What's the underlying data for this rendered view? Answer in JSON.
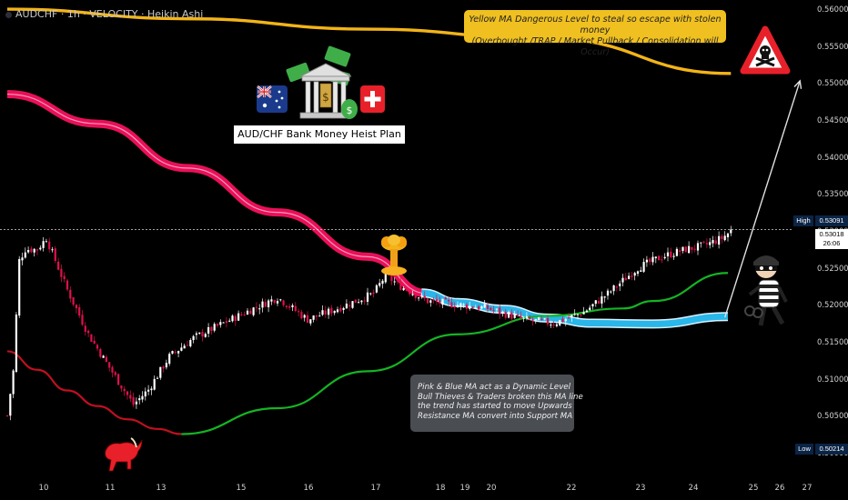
{
  "header": {
    "symbol_label": "AUDCHF · 1h · VELOCITY · Heikin Ashi"
  },
  "annotations": {
    "yellow_note": {
      "line1": "Yellow MA Dangerous Level to steal so escape with stolen money",
      "line2": "(Overbought /TRAP / Market Pullback / Consolidation will Occur)"
    },
    "plan_title": "AUD/CHF Bank Money Heist Plan",
    "grey_note": {
      "lines": [
        "Pink & Blue MA act as a Dynamic Level",
        "Bull Thieves & Traders broken this MA line",
        "the trend has started to move Upwards",
        "Resistance MA convert into Support MA"
      ]
    }
  },
  "price_tags": {
    "high_label": "High",
    "high_value": "0.53091",
    "current_value": "0.53018",
    "countdown": "26:06",
    "low_label": "Low",
    "low_value": "0.50214"
  },
  "colors": {
    "bull": "#ffffff",
    "bear": "#e0104a",
    "pink_ma": "#e8105a",
    "blue_ma": "#29b6e8",
    "green_ma": "#14b424",
    "yellow_ma": "#f2b418",
    "red_ma": "#c01020",
    "arrow": "#e0e0e0"
  },
  "icons": [
    "australia-flag-icon",
    "bank-money-icon",
    "swiss-flag-icon",
    "danger-skull-sign-icon",
    "explosion-icon",
    "bull-icon",
    "thief-icon"
  ],
  "chart_data": {
    "type": "candlestick",
    "style": "Heikin Ashi",
    "timeframe": "1h",
    "ylim": [
      0.4985,
      0.5605
    ],
    "y_ticks": [
      "0.56000",
      "0.55500",
      "0.55000",
      "0.54500",
      "0.54000",
      "0.53500",
      "0.53000",
      "0.52500",
      "0.52000",
      "0.51500",
      "0.51000",
      "0.50500",
      "0.50000"
    ],
    "x_ticks": [
      "10",
      "11",
      "13",
      "15",
      "16",
      "17",
      "18",
      "19",
      "20",
      "22",
      "23",
      "24",
      "25",
      "26",
      "27"
    ],
    "anchors": [
      [
        0,
        0.505
      ],
      [
        2,
        0.511
      ],
      [
        4,
        0.526
      ],
      [
        6,
        0.5275
      ],
      [
        10,
        0.5275
      ],
      [
        13,
        0.529
      ],
      [
        20,
        0.522
      ],
      [
        27,
        0.516
      ],
      [
        34,
        0.5115
      ],
      [
        42,
        0.5065
      ],
      [
        47,
        0.5085
      ],
      [
        54,
        0.513
      ],
      [
        62,
        0.5155
      ],
      [
        72,
        0.5175
      ],
      [
        82,
        0.5195
      ],
      [
        90,
        0.521
      ],
      [
        100,
        0.518
      ],
      [
        110,
        0.5195
      ],
      [
        122,
        0.5215
      ],
      [
        126,
        0.524
      ],
      [
        131,
        0.5225
      ],
      [
        140,
        0.5205
      ],
      [
        150,
        0.52
      ],
      [
        160,
        0.5195
      ],
      [
        172,
        0.518
      ],
      [
        182,
        0.5175
      ],
      [
        192,
        0.519
      ],
      [
        200,
        0.5215
      ],
      [
        210,
        0.525
      ],
      [
        218,
        0.5265
      ],
      [
        226,
        0.5275
      ],
      [
        232,
        0.528
      ],
      [
        238,
        0.529
      ],
      [
        241,
        0.53
      ]
    ],
    "candle_count": 242,
    "last_close": 0.53018,
    "high": 0.53091,
    "low": 0.50214,
    "moving_averages": [
      {
        "name": "Pink MA",
        "color": "#e8105a",
        "points": [
          [
            0,
            0.5485
          ],
          [
            30,
            0.5445
          ],
          [
            60,
            0.5385
          ],
          [
            90,
            0.5325
          ],
          [
            120,
            0.5265
          ],
          [
            140,
            0.5215
          ]
        ]
      },
      {
        "name": "Blue MA",
        "color": "#29b6e8",
        "points": [
          [
            138,
            0.5216
          ],
          [
            150,
            0.5203
          ],
          [
            165,
            0.5194
          ],
          [
            180,
            0.5182
          ],
          [
            195,
            0.5175
          ],
          [
            215,
            0.5174
          ],
          [
            240,
            0.5184
          ]
        ]
      },
      {
        "name": "Red MA",
        "color": "#c01020",
        "points": [
          [
            0,
            0.5137
          ],
          [
            10,
            0.5112
          ],
          [
            20,
            0.5084
          ],
          [
            30,
            0.5063
          ],
          [
            40,
            0.5045
          ],
          [
            50,
            0.5032
          ],
          [
            58,
            0.5025
          ]
        ]
      },
      {
        "name": "Green MA",
        "color": "#14b424",
        "points": [
          [
            58,
            0.5025
          ],
          [
            90,
            0.506
          ],
          [
            120,
            0.511
          ],
          [
            150,
            0.516
          ],
          [
            180,
            0.5185
          ],
          [
            205,
            0.5195
          ],
          [
            215,
            0.5205
          ],
          [
            240,
            0.5243
          ]
        ]
      },
      {
        "name": "Yellow MA",
        "color": "#f2b418",
        "points": [
          [
            0,
            0.56
          ],
          [
            60,
            0.5587
          ],
          [
            120,
            0.5573
          ],
          [
            180,
            0.556
          ],
          [
            241,
            0.5513
          ]
        ]
      }
    ],
    "target_arrow": {
      "from": [
        239,
        0.5183
      ],
      "to": [
        264,
        0.5503
      ]
    }
  }
}
